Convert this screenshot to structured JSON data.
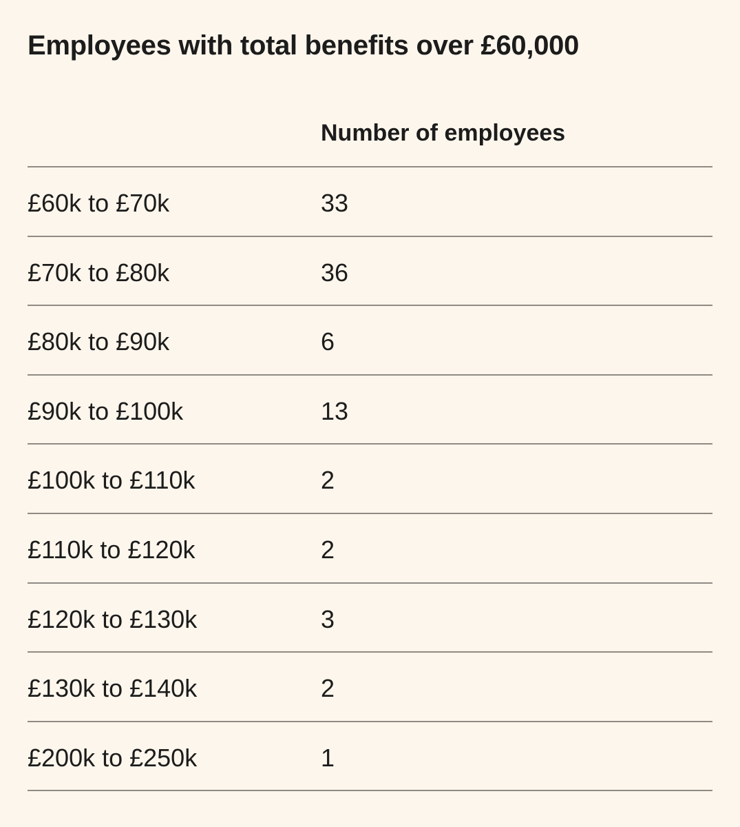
{
  "title": "Employees with total benefits over £60,000",
  "table": {
    "column_header": "Number of employees",
    "rows": [
      {
        "band": "£60k to £70k",
        "count": "33"
      },
      {
        "band": "£70k to £80k",
        "count": "36"
      },
      {
        "band": "£80k to £90k",
        "count": "6"
      },
      {
        "band": "£90k to £100k",
        "count": "13"
      },
      {
        "band": "£100k to £110k",
        "count": "2"
      },
      {
        "band": "£110k to £120k",
        "count": "2"
      },
      {
        "band": "£120k to £130k",
        "count": "3"
      },
      {
        "band": "£130k to £140k",
        "count": "2"
      },
      {
        "band": "£200k to £250k",
        "count": "1"
      }
    ]
  },
  "colors": {
    "background": "#fdf6ec",
    "text": "#1c1c1c",
    "rule": "#8f8a84"
  }
}
